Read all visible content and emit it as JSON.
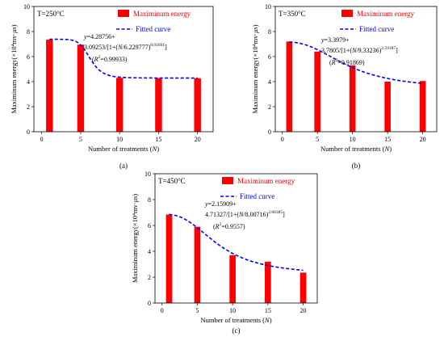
{
  "chart_data": [
    {
      "type": "bar",
      "panel_label": "(a)",
      "temperature_label": "T=250°C",
      "xlabel": "Number of treatments (N)",
      "ylabel": "Maximinum energy(×10⁴mv·μs)",
      "xlim": [
        -1,
        22
      ],
      "ylim": [
        0,
        10
      ],
      "xticks": [
        0,
        5,
        10,
        15,
        20
      ],
      "yticks": [
        0,
        2,
        4,
        6,
        8,
        10
      ],
      "x": [
        1,
        5,
        10,
        15,
        20
      ],
      "series": [
        {
          "name": "Maximinum energy",
          "kind": "bar",
          "color": "#ff0000",
          "values": [
            7.35,
            6.95,
            4.3,
            4.28,
            4.27
          ]
        },
        {
          "name": "Fitted curve",
          "kind": "dashed-line",
          "color": "#0000ff",
          "model": {
            "base": 4.28756,
            "amp": 3.09253,
            "x0": 6.229777,
            "p": 8.01691
          }
        }
      ],
      "equation_lines": [
        "y=4.28756+",
        "3.09253/[1+(N/6.229777)^8.01691]",
        "(R²=0.99933)"
      ],
      "legend_position": "top-right"
    },
    {
      "type": "bar",
      "panel_label": "(b)",
      "temperature_label": "T=350°C",
      "xlabel": "Number of treatments (N)",
      "ylabel": "Maximinum energy(×10⁴mv·μs)",
      "xlim": [
        -1,
        22
      ],
      "ylim": [
        0,
        10
      ],
      "xticks": [
        0,
        5,
        10,
        15,
        20
      ],
      "yticks": [
        0,
        2,
        4,
        6,
        8,
        10
      ],
      "x": [
        1,
        5,
        10,
        15,
        20
      ],
      "series": [
        {
          "name": "Maximinum energy",
          "kind": "bar",
          "color": "#ff0000",
          "values": [
            7.2,
            6.4,
            5.3,
            4.0,
            4.05
          ]
        },
        {
          "name": "Fitted curve",
          "kind": "dashed-line",
          "color": "#0000ff",
          "model": {
            "base": 3.3979,
            "amp": 3.7805,
            "x0": 9.33236,
            "p": 2.59187
          }
        }
      ],
      "equation_lines": [
        "y=3.3979+",
        "3.7805/[1+(N/9.33236)^2.59187]",
        "(R²=0.91869)"
      ],
      "legend_position": "top-right"
    },
    {
      "type": "bar",
      "panel_label": "(c)",
      "temperature_label": "T=450°C",
      "xlabel": "Number of treatments (N)",
      "ylabel": "Maximinum energy(×10⁴mv·μs)",
      "xlim": [
        -1,
        22
      ],
      "ylim": [
        0,
        10
      ],
      "xticks": [
        0,
        5,
        10,
        15,
        20
      ],
      "yticks": [
        0,
        2,
        4,
        6,
        8,
        10
      ],
      "x": [
        1,
        5,
        10,
        15,
        20
      ],
      "series": [
        {
          "name": "Maximinum energy",
          "kind": "bar",
          "color": "#ff0000",
          "values": [
            6.85,
            5.9,
            3.7,
            3.2,
            2.35
          ]
        },
        {
          "name": "Fitted curve",
          "kind": "dashed-line",
          "color": "#0000ff",
          "model": {
            "base": 2.15909,
            "amp": 4.71327,
            "x0": 8.00716,
            "p": 2.66385
          }
        }
      ],
      "equation_lines": [
        "y=2.15909+",
        "4.71327/[1+(N/8.00716)^2.66385]",
        "(R²=0.9557)"
      ],
      "legend_position": "top-right"
    }
  ]
}
